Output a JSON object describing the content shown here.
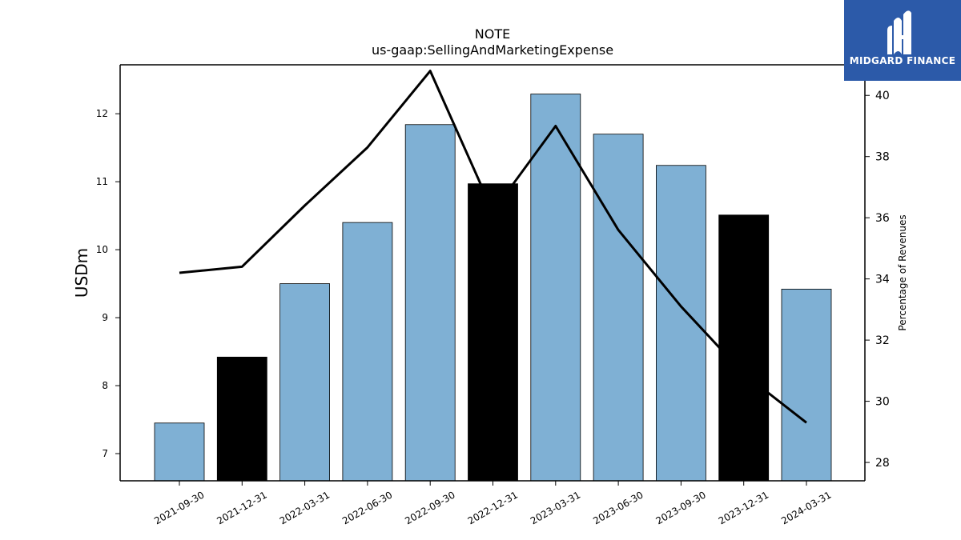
{
  "chart_data": {
    "type": "bar",
    "title": "NOTE",
    "subtitle": "us-gaap:SellingAndMarketingExpense",
    "ylabel": "USDm",
    "y2label": "Percentage of Revenues",
    "categories": [
      "2021-09-30",
      "2021-12-31",
      "2022-03-31",
      "2022-06-30",
      "2022-09-30",
      "2022-12-31",
      "2023-03-31",
      "2023-06-30",
      "2023-09-30",
      "2023-12-31",
      "2024-03-31"
    ],
    "series": [
      {
        "type": "bar",
        "values": [
          7.45,
          8.42,
          9.5,
          10.4,
          11.84,
          10.97,
          12.29,
          11.7,
          11.24,
          10.51,
          9.42
        ],
        "colors": [
          "#7fb0d4",
          "#000000",
          "#7fb0d4",
          "#7fb0d4",
          "#7fb0d4",
          "#000000",
          "#7fb0d4",
          "#7fb0d4",
          "#7fb0d4",
          "#000000",
          "#7fb0d4"
        ]
      },
      {
        "type": "line",
        "axis": "right",
        "values": [
          34.2,
          34.4,
          36.4,
          38.3,
          40.8,
          36.2,
          39.0,
          35.6,
          33.1,
          30.9,
          29.3
        ],
        "color": "#000000"
      }
    ],
    "ylim": [
      6.6,
      12.72
    ],
    "y2lim": [
      27.4,
      41.0
    ],
    "yticks": [
      7,
      8,
      9,
      10,
      11,
      12
    ],
    "y2ticks": [
      28,
      30,
      32,
      34,
      36,
      38,
      40
    ],
    "grid": false
  },
  "logo": {
    "text": "MIDGARD FINANCE",
    "icon": "midgard-logo-icon",
    "background": "#2c5aa9"
  }
}
